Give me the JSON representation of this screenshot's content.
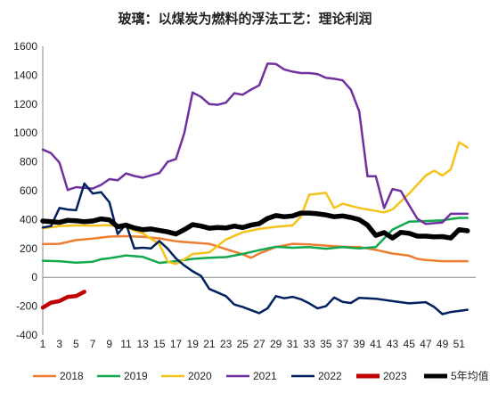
{
  "chart_data": {
    "type": "line",
    "title": "玻璃：以煤炭为燃料的浮法工艺：理论利润",
    "xlabel": "",
    "ylabel": "",
    "ylim": [
      -400,
      1600
    ],
    "xlim": [
      1,
      53
    ],
    "y_ticks": [
      "-400",
      "-200",
      "0",
      "200",
      "400",
      "600",
      "800",
      "1000",
      "1200",
      "1400",
      "1600"
    ],
    "x_ticks": [
      "1",
      "3",
      "5",
      "7",
      "9",
      "11",
      "13",
      "15",
      "17",
      "19",
      "21",
      "23",
      "25",
      "27",
      "29",
      "31",
      "33",
      "35",
      "37",
      "39",
      "41",
      "43",
      "45",
      "47",
      "49",
      "51"
    ],
    "grid": false,
    "legend_position": "bottom",
    "series": [
      {
        "name": "2018",
        "color": "#ED7D31",
        "width": 2.5,
        "points": [
          [
            1,
            230
          ],
          [
            3,
            232
          ],
          [
            5,
            258
          ],
          [
            7,
            268
          ],
          [
            9,
            282
          ],
          [
            11,
            285
          ],
          [
            13,
            280
          ],
          [
            15,
            270
          ],
          [
            17,
            250
          ],
          [
            19,
            240
          ],
          [
            21,
            232
          ],
          [
            23,
            195
          ],
          [
            25,
            160
          ],
          [
            26,
            135
          ],
          [
            27,
            165
          ],
          [
            29,
            210
          ],
          [
            31,
            232
          ],
          [
            33,
            228
          ],
          [
            35,
            220
          ],
          [
            37,
            212
          ],
          [
            39,
            210
          ],
          [
            41,
            190
          ],
          [
            43,
            165
          ],
          [
            45,
            150
          ],
          [
            46,
            128
          ],
          [
            47,
            120
          ],
          [
            49,
            112
          ],
          [
            51,
            112
          ],
          [
            52,
            112
          ]
        ]
      },
      {
        "name": "2019",
        "color": "#11A84E",
        "width": 2.5,
        "points": [
          [
            1,
            115
          ],
          [
            3,
            112
          ],
          [
            5,
            102
          ],
          [
            7,
            108
          ],
          [
            8,
            125
          ],
          [
            9,
            132
          ],
          [
            11,
            152
          ],
          [
            13,
            142
          ],
          [
            15,
            100
          ],
          [
            17,
            112
          ],
          [
            19,
            128
          ],
          [
            21,
            135
          ],
          [
            23,
            140
          ],
          [
            25,
            162
          ],
          [
            27,
            188
          ],
          [
            29,
            212
          ],
          [
            31,
            205
          ],
          [
            33,
            210
          ],
          [
            35,
            198
          ],
          [
            37,
            210
          ],
          [
            39,
            200
          ],
          [
            41,
            210
          ],
          [
            43,
            330
          ],
          [
            45,
            385
          ],
          [
            47,
            390
          ],
          [
            49,
            395
          ],
          [
            51,
            412
          ],
          [
            52,
            412
          ]
        ]
      },
      {
        "name": "2020",
        "color": "#F5C21A",
        "width": 2.5,
        "points": [
          [
            1,
            340
          ],
          [
            3,
            355
          ],
          [
            5,
            360
          ],
          [
            7,
            358
          ],
          [
            9,
            362
          ],
          [
            11,
            345
          ],
          [
            13,
            305
          ],
          [
            15,
            230
          ],
          [
            16,
            110
          ],
          [
            17,
            92
          ],
          [
            18,
            125
          ],
          [
            19,
            162
          ],
          [
            21,
            172
          ],
          [
            23,
            262
          ],
          [
            25,
            312
          ],
          [
            27,
            335
          ],
          [
            29,
            350
          ],
          [
            31,
            360
          ],
          [
            32,
            420
          ],
          [
            33,
            572
          ],
          [
            35,
            585
          ],
          [
            36,
            480
          ],
          [
            37,
            510
          ],
          [
            39,
            480
          ],
          [
            41,
            460
          ],
          [
            42,
            450
          ],
          [
            43,
            470
          ],
          [
            45,
            580
          ],
          [
            47,
            705
          ],
          [
            48,
            738
          ],
          [
            49,
            705
          ],
          [
            50,
            748
          ],
          [
            51,
            935
          ],
          [
            52,
            900
          ]
        ]
      },
      {
        "name": "2021",
        "color": "#7030A0",
        "width": 2.5,
        "points": [
          [
            1,
            885
          ],
          [
            2,
            860
          ],
          [
            3,
            795
          ],
          [
            4,
            605
          ],
          [
            5,
            625
          ],
          [
            7,
            615
          ],
          [
            8,
            640
          ],
          [
            9,
            680
          ],
          [
            10,
            672
          ],
          [
            11,
            720
          ],
          [
            12,
            702
          ],
          [
            13,
            690
          ],
          [
            15,
            722
          ],
          [
            16,
            800
          ],
          [
            17,
            820
          ],
          [
            18,
            1000
          ],
          [
            19,
            1280
          ],
          [
            20,
            1250
          ],
          [
            21,
            1200
          ],
          [
            22,
            1195
          ],
          [
            23,
            1210
          ],
          [
            24,
            1275
          ],
          [
            25,
            1265
          ],
          [
            26,
            1300
          ],
          [
            27,
            1330
          ],
          [
            28,
            1480
          ],
          [
            29,
            1478
          ],
          [
            30,
            1440
          ],
          [
            31,
            1425
          ],
          [
            32,
            1415
          ],
          [
            33,
            1415
          ],
          [
            34,
            1408
          ],
          [
            35,
            1382
          ],
          [
            36,
            1375
          ],
          [
            37,
            1365
          ],
          [
            38,
            1300
          ],
          [
            39,
            1150
          ],
          [
            40,
            700
          ],
          [
            41,
            700
          ],
          [
            42,
            480
          ],
          [
            43,
            612
          ],
          [
            44,
            598
          ],
          [
            45,
            500
          ],
          [
            46,
            405
          ],
          [
            47,
            370
          ],
          [
            49,
            380
          ],
          [
            50,
            440
          ],
          [
            52,
            440
          ]
        ]
      },
      {
        "name": "2022",
        "color": "#002060",
        "width": 2.5,
        "points": [
          [
            1,
            345
          ],
          [
            2,
            355
          ],
          [
            3,
            480
          ],
          [
            4,
            470
          ],
          [
            5,
            465
          ],
          [
            6,
            650
          ],
          [
            7,
            580
          ],
          [
            8,
            590
          ],
          [
            9,
            520
          ],
          [
            10,
            300
          ],
          [
            11,
            370
          ],
          [
            12,
            200
          ],
          [
            13,
            205
          ],
          [
            14,
            200
          ],
          [
            15,
            252
          ],
          [
            16,
            198
          ],
          [
            17,
            130
          ],
          [
            18,
            82
          ],
          [
            19,
            42
          ],
          [
            20,
            10
          ],
          [
            21,
            -80
          ],
          [
            23,
            -130
          ],
          [
            24,
            -188
          ],
          [
            25,
            -205
          ],
          [
            27,
            -248
          ],
          [
            28,
            -215
          ],
          [
            29,
            -130
          ],
          [
            30,
            -145
          ],
          [
            31,
            -135
          ],
          [
            32,
            -152
          ],
          [
            33,
            -180
          ],
          [
            34,
            -215
          ],
          [
            35,
            -200
          ],
          [
            36,
            -140
          ],
          [
            37,
            -170
          ],
          [
            38,
            -178
          ],
          [
            39,
            -142
          ],
          [
            41,
            -148
          ],
          [
            43,
            -165
          ],
          [
            45,
            -180
          ],
          [
            47,
            -172
          ],
          [
            48,
            -205
          ],
          [
            49,
            -255
          ],
          [
            50,
            -240
          ],
          [
            52,
            -225
          ]
        ]
      },
      {
        "name": "2023",
        "color": "#C00000",
        "width": 4.5,
        "points": [
          [
            1,
            -210
          ],
          [
            2,
            -175
          ],
          [
            3,
            -165
          ],
          [
            4,
            -135
          ],
          [
            5,
            -130
          ],
          [
            6,
            -100
          ]
        ]
      },
      {
        "name": "5年均值",
        "color": "#000000",
        "width": 5.5,
        "points": [
          [
            1,
            390
          ],
          [
            2,
            385
          ],
          [
            3,
            380
          ],
          [
            4,
            395
          ],
          [
            5,
            392
          ],
          [
            6,
            385
          ],
          [
            7,
            390
          ],
          [
            8,
            405
          ],
          [
            9,
            398
          ],
          [
            10,
            350
          ],
          [
            11,
            362
          ],
          [
            12,
            342
          ],
          [
            13,
            330
          ],
          [
            14,
            335
          ],
          [
            15,
            325
          ],
          [
            16,
            315
          ],
          [
            17,
            300
          ],
          [
            18,
            330
          ],
          [
            19,
            365
          ],
          [
            20,
            355
          ],
          [
            21,
            340
          ],
          [
            22,
            345
          ],
          [
            23,
            342
          ],
          [
            24,
            355
          ],
          [
            25,
            345
          ],
          [
            26,
            362
          ],
          [
            27,
            372
          ],
          [
            28,
            408
          ],
          [
            29,
            428
          ],
          [
            30,
            420
          ],
          [
            31,
            425
          ],
          [
            32,
            445
          ],
          [
            33,
            445
          ],
          [
            34,
            440
          ],
          [
            35,
            432
          ],
          [
            36,
            420
          ],
          [
            37,
            425
          ],
          [
            38,
            415
          ],
          [
            39,
            400
          ],
          [
            40,
            362
          ],
          [
            41,
            290
          ],
          [
            42,
            310
          ],
          [
            43,
            272
          ],
          [
            44,
            312
          ],
          [
            45,
            305
          ],
          [
            46,
            285
          ],
          [
            47,
            285
          ],
          [
            48,
            280
          ],
          [
            49,
            282
          ],
          [
            50,
            272
          ],
          [
            51,
            330
          ],
          [
            52,
            322
          ]
        ]
      }
    ]
  }
}
